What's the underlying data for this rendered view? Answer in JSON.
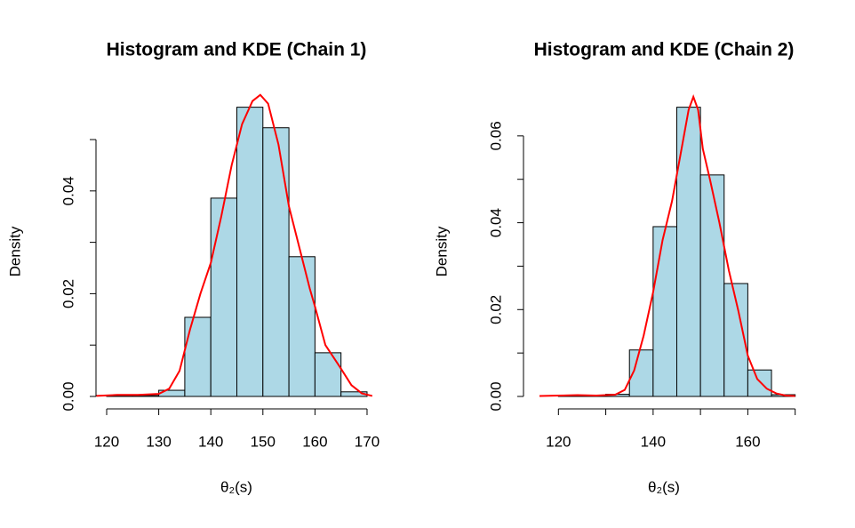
{
  "chart_data": [
    {
      "type": "histogram",
      "title": "Histogram and KDE (Chain 1)",
      "xlabel": "θ₂(s)",
      "ylabel": "Density",
      "bins": [
        120,
        125,
        130,
        135,
        140,
        145,
        150,
        155,
        160,
        165,
        170
      ],
      "values": [
        0.0002,
        0.0002,
        0.0012,
        0.0154,
        0.0386,
        0.0563,
        0.0523,
        0.0272,
        0.0085,
        0.0009
      ],
      "color": "#add8e6",
      "kde": {
        "color": "#ff0000",
        "x": [
          118,
          122,
          126,
          130,
          132,
          134,
          136,
          138,
          140,
          142,
          144,
          146,
          148,
          149.5,
          151,
          153,
          155,
          157,
          159,
          160,
          162,
          165,
          167,
          169,
          171
        ],
        "y": [
          0.0001,
          0.0003,
          0.0003,
          0.0005,
          0.0015,
          0.005,
          0.013,
          0.02,
          0.026,
          0.035,
          0.045,
          0.053,
          0.0575,
          0.0587,
          0.057,
          0.049,
          0.037,
          0.029,
          0.021,
          0.0175,
          0.01,
          0.0054,
          0.0022,
          0.0006,
          0.0001
        ]
      },
      "xlim": [
        118,
        172
      ],
      "ylim": [
        0,
        0.059
      ],
      "xticks": [
        120,
        130,
        140,
        150,
        160,
        170
      ],
      "yticks": [
        {
          "value": 0,
          "label": "0.00"
        },
        {
          "value": 0.01,
          "label": null
        },
        {
          "value": 0.02,
          "label": "0.02"
        },
        {
          "value": 0.03,
          "label": null
        },
        {
          "value": 0.04,
          "label": "0.04"
        },
        {
          "value": 0.05,
          "label": null
        }
      ]
    },
    {
      "type": "histogram",
      "title": "Histogram and KDE (Chain 2)",
      "xlabel": "θ₂(s)",
      "ylabel": "Density",
      "bins": [
        120,
        125,
        130,
        135,
        140,
        145,
        150,
        155,
        160,
        165,
        170
      ],
      "values": [
        0.0002,
        0.0001,
        0.0005,
        0.0107,
        0.0391,
        0.0666,
        0.051,
        0.026,
        0.0061,
        0.0004
      ],
      "color": "#add8e6",
      "kde": {
        "color": "#ff0000",
        "x": [
          116,
          120,
          124,
          128,
          132,
          134,
          136,
          138,
          140,
          142,
          144,
          146,
          147.5,
          148.5,
          149.5,
          150.5,
          152,
          154,
          156,
          158,
          160,
          162,
          164,
          166,
          168,
          170
        ],
        "y": [
          0.0001,
          0.0002,
          0.0003,
          0.0002,
          0.0004,
          0.0015,
          0.006,
          0.014,
          0.024,
          0.036,
          0.045,
          0.057,
          0.066,
          0.069,
          0.066,
          0.057,
          0.05,
          0.04,
          0.029,
          0.0197,
          0.0094,
          0.004,
          0.0018,
          0.0007,
          0.0002,
          0.0001
        ]
      },
      "xlim": [
        116,
        171
      ],
      "ylim": [
        0,
        0.07
      ],
      "xticks": [
        120,
        {
          "value": 130,
          "label": null
        },
        140,
        {
          "value": 150,
          "label": null
        },
        160,
        {
          "value": 170,
          "label": null
        }
      ],
      "yticks": [
        {
          "value": 0,
          "label": "0.00"
        },
        {
          "value": 0.01,
          "label": null
        },
        {
          "value": 0.02,
          "label": "0.02"
        },
        {
          "value": 0.03,
          "label": null
        },
        {
          "value": 0.04,
          "label": "0.04"
        },
        {
          "value": 0.05,
          "label": null
        },
        {
          "value": 0.06,
          "label": "0.06"
        }
      ]
    }
  ]
}
